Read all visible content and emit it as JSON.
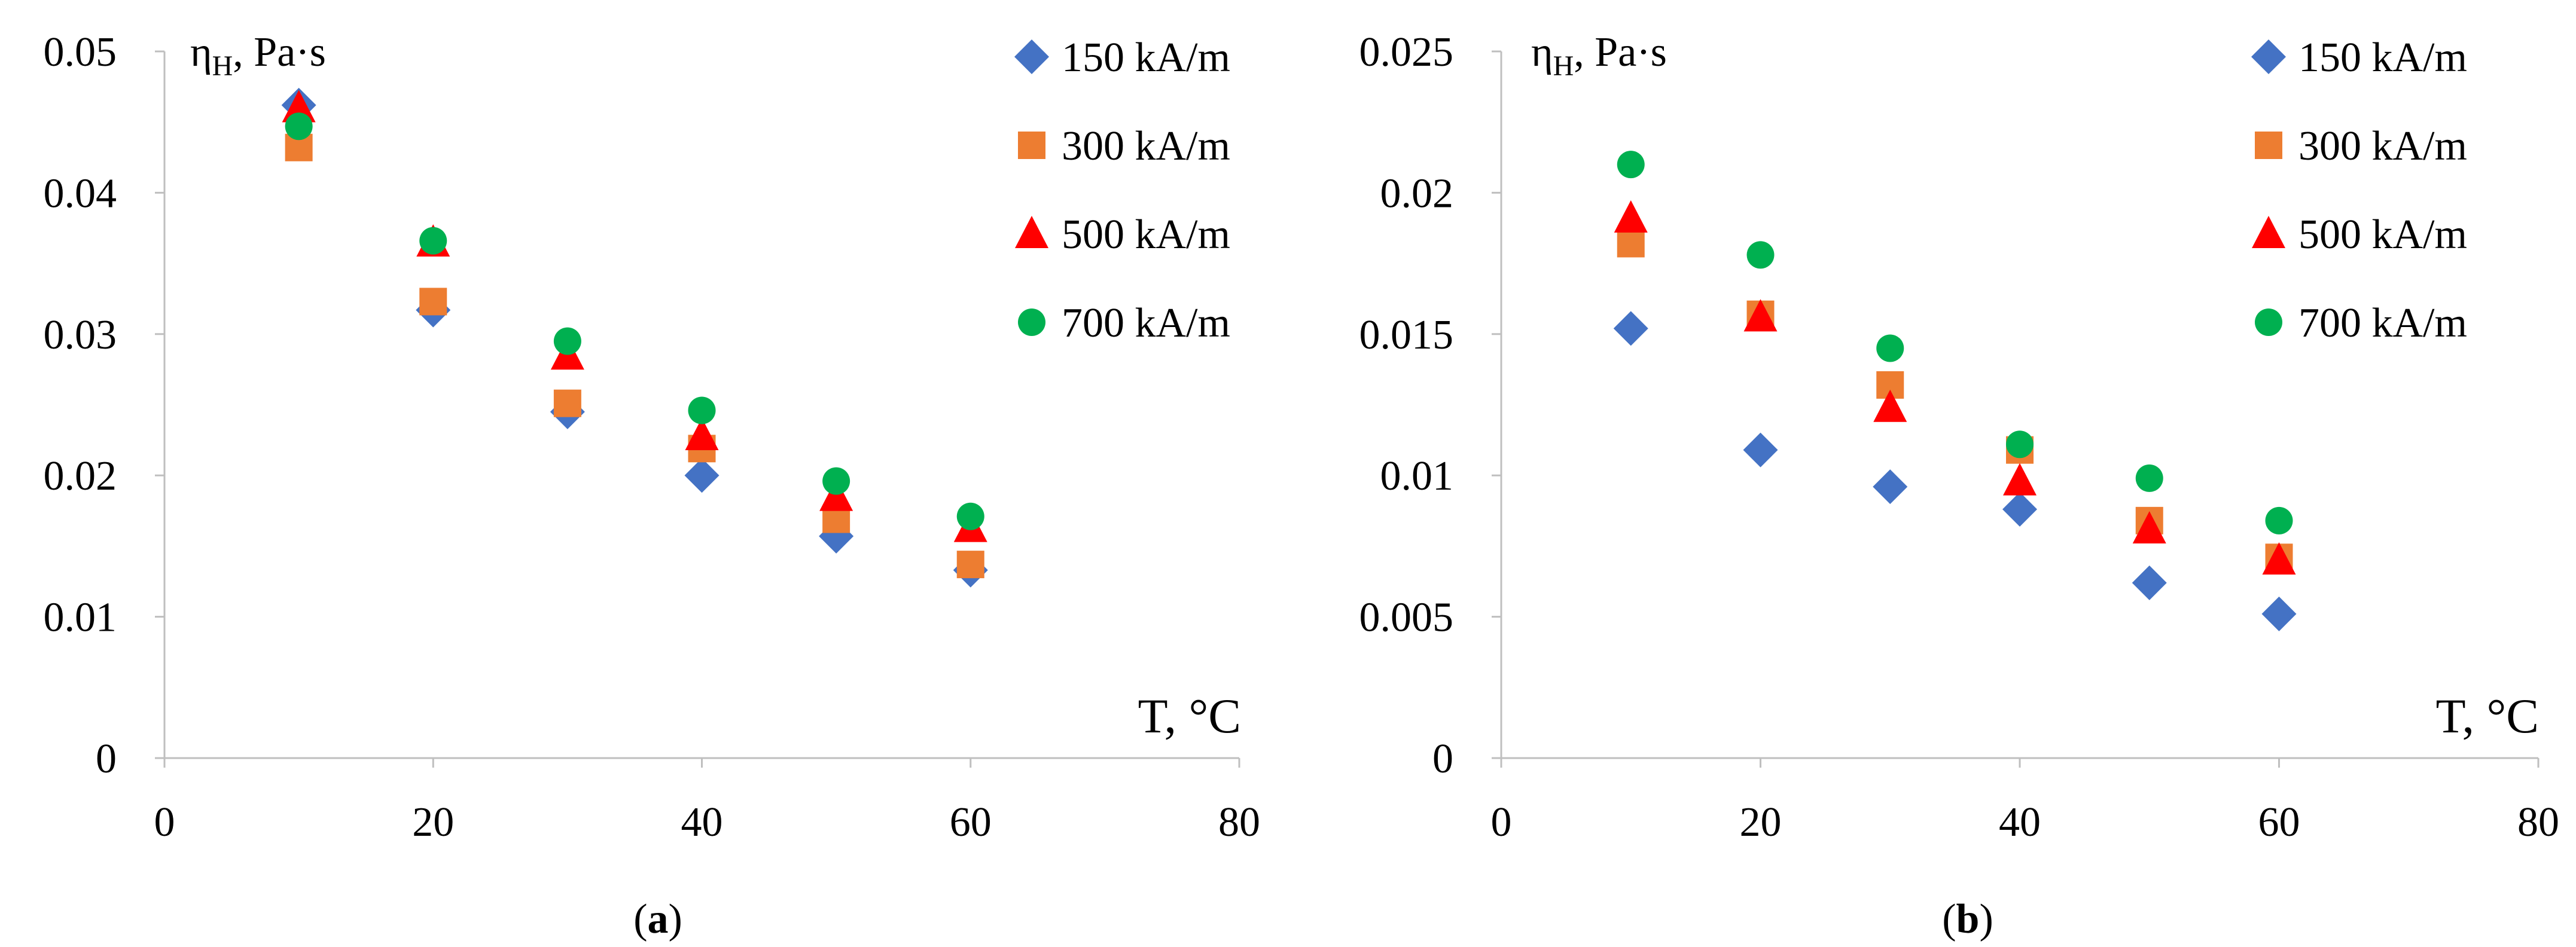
{
  "chart_data": [
    {
      "type": "scatter",
      "ylabel_main": "η",
      "ylabel_sub": "H",
      "ylabel_rest": ", Pa·s",
      "xlabel": "T, °C",
      "panel_label_open": "(",
      "panel_label_letter": "a",
      "panel_label_close": ")",
      "xlim": [
        0,
        80
      ],
      "ylim": [
        0,
        0.05
      ],
      "x_ticks": [
        0,
        20,
        40,
        60,
        80
      ],
      "y_ticks": [
        0,
        0.01,
        0.02,
        0.03,
        0.04,
        0.05
      ],
      "x_tick_labels": [
        "0",
        "20",
        "40",
        "60",
        "80"
      ],
      "y_tick_labels": [
        "0",
        "0.01",
        "0.02",
        "0.03",
        "0.04",
        "0.05"
      ],
      "legend_position": "top-right",
      "grid": false,
      "series": [
        {
          "name": "150 kA/m",
          "marker": "diamond",
          "color": "#4472C4",
          "x": [
            10,
            20,
            30,
            40,
            50,
            60
          ],
          "y": [
            0.0462,
            0.0317,
            0.0245,
            0.02,
            0.0157,
            0.0133
          ]
        },
        {
          "name": "300 kA/m",
          "marker": "square",
          "color": "#ED7D31",
          "x": [
            10,
            20,
            30,
            40,
            50,
            60
          ],
          "y": [
            0.0432,
            0.0323,
            0.0251,
            0.0219,
            0.0169,
            0.0137
          ]
        },
        {
          "name": "500 kA/m",
          "marker": "triangle",
          "color": "#FF0000",
          "x": [
            10,
            20,
            30,
            40,
            50,
            60
          ],
          "y": [
            0.046,
            0.0365,
            0.0285,
            0.0228,
            0.0185,
            0.0163
          ]
        },
        {
          "name": "700 kA/m",
          "marker": "circle",
          "color": "#00B050",
          "x": [
            10,
            20,
            30,
            40,
            50,
            60
          ],
          "y": [
            0.0447,
            0.0366,
            0.0295,
            0.0246,
            0.0196,
            0.0171
          ]
        }
      ]
    },
    {
      "type": "scatter",
      "ylabel_main": "η",
      "ylabel_sub": "H",
      "ylabel_rest": ", Pa·s",
      "xlabel": "T, °C",
      "panel_label_open": "(",
      "panel_label_letter": "b",
      "panel_label_close": ")",
      "xlim": [
        0,
        80
      ],
      "ylim": [
        0,
        0.025
      ],
      "x_ticks": [
        0,
        20,
        40,
        60,
        80
      ],
      "y_ticks": [
        0,
        0.005,
        0.01,
        0.015,
        0.02,
        0.025
      ],
      "x_tick_labels": [
        "0",
        "20",
        "40",
        "60",
        "80"
      ],
      "y_tick_labels": [
        "0",
        "0.005",
        "0.01",
        "0.015",
        "0.02",
        "0.025"
      ],
      "legend_position": "top-right",
      "grid": false,
      "series": [
        {
          "name": "150 kA/m",
          "marker": "diamond",
          "color": "#4472C4",
          "x": [
            10,
            20,
            30,
            40,
            50,
            60
          ],
          "y": [
            0.0152,
            0.0109,
            0.0096,
            0.0088,
            0.0062,
            0.0051
          ]
        },
        {
          "name": "300 kA/m",
          "marker": "square",
          "color": "#ED7D31",
          "x": [
            10,
            20,
            30,
            40,
            50,
            60
          ],
          "y": [
            0.0182,
            0.0157,
            0.0132,
            0.0109,
            0.0084,
            0.0071
          ]
        },
        {
          "name": "500 kA/m",
          "marker": "triangle",
          "color": "#FF0000",
          "x": [
            10,
            20,
            30,
            40,
            50,
            60
          ],
          "y": [
            0.0191,
            0.0156,
            0.0124,
            0.0098,
            0.0081,
            0.007
          ]
        },
        {
          "name": "700 kA/m",
          "marker": "circle",
          "color": "#00B050",
          "x": [
            10,
            20,
            30,
            40,
            50,
            60
          ],
          "y": [
            0.021,
            0.0178,
            0.0145,
            0.0111,
            0.0099,
            0.0084
          ]
        }
      ]
    }
  ]
}
